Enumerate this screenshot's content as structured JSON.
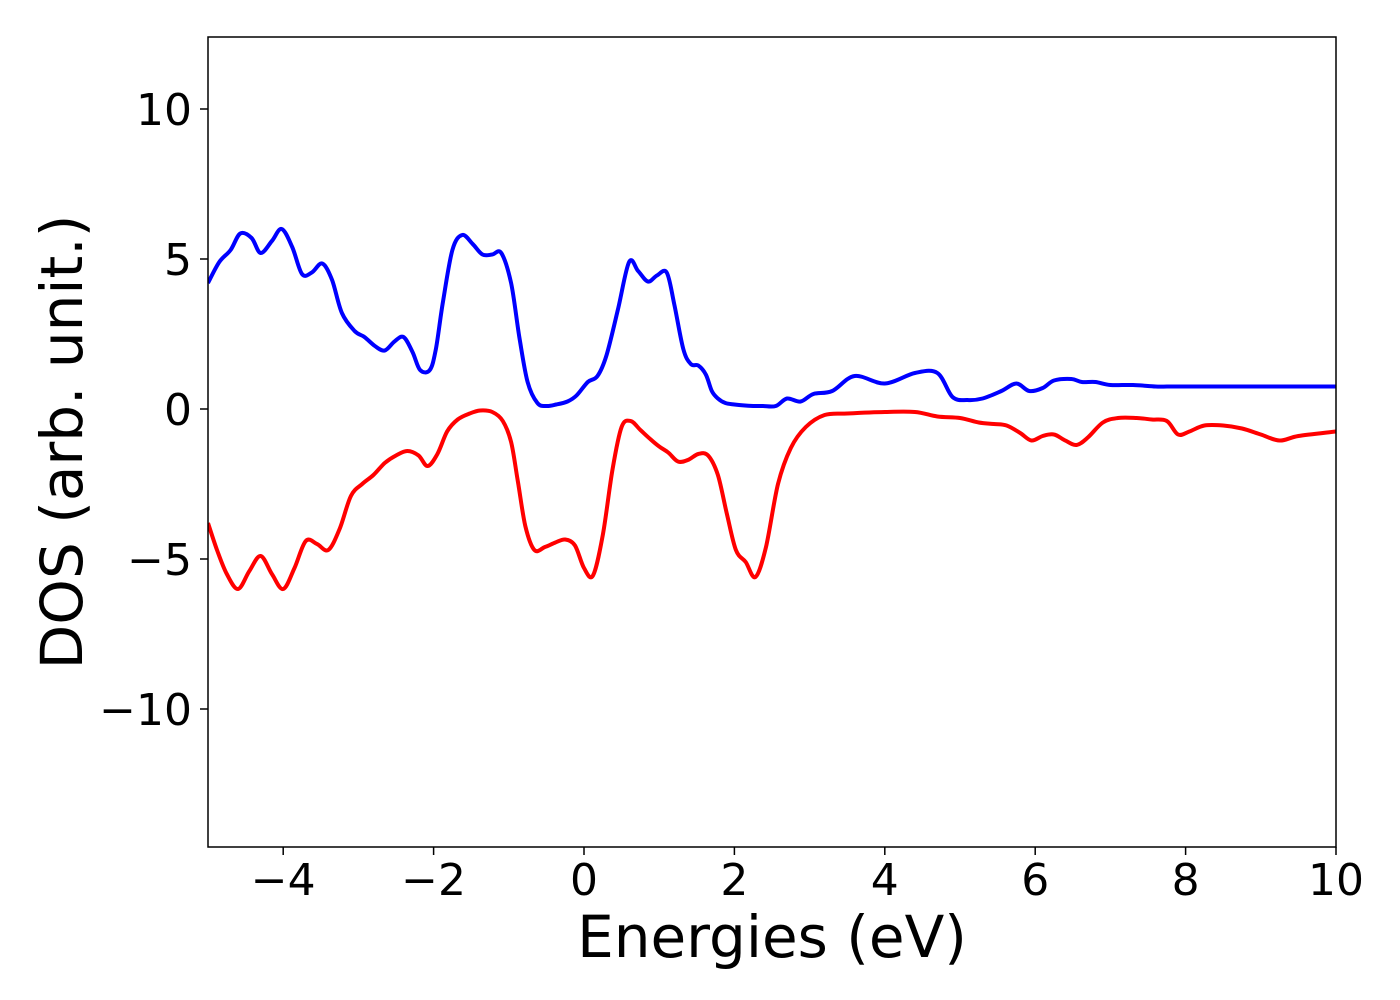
{
  "chart_data": {
    "type": "line",
    "title": "",
    "xlabel": "Energies (eV)",
    "ylabel": "DOS (arb. unit.)",
    "xlim": [
      -5,
      10
    ],
    "ylim": [
      -14.6,
      12.4
    ],
    "grid": false,
    "legend": "none",
    "xticks": [
      {
        "value": -4,
        "label": "−4"
      },
      {
        "value": -2,
        "label": "−2"
      },
      {
        "value": 0,
        "label": "0"
      },
      {
        "value": 2,
        "label": "2"
      },
      {
        "value": 4,
        "label": "4"
      },
      {
        "value": 6,
        "label": "6"
      },
      {
        "value": 8,
        "label": "8"
      },
      {
        "value": 10,
        "label": "10"
      }
    ],
    "yticks": [
      {
        "value": 10,
        "label": "10"
      },
      {
        "value": 5,
        "label": "5"
      },
      {
        "value": 0,
        "label": "0"
      },
      {
        "value": -5,
        "label": "−5"
      },
      {
        "value": -10,
        "label": "−10"
      }
    ],
    "series": [
      {
        "color": "#0000ff",
        "x": [
          -5.0,
          -4.85,
          -4.7,
          -4.57,
          -4.42,
          -4.3,
          -4.15,
          -4.02,
          -3.88,
          -3.75,
          -3.62,
          -3.48,
          -3.35,
          -3.22,
          -3.05,
          -2.92,
          -2.78,
          -2.65,
          -2.52,
          -2.4,
          -2.28,
          -2.18,
          -2.05,
          -1.97,
          -1.88,
          -1.75,
          -1.62,
          -1.48,
          -1.35,
          -1.22,
          -1.1,
          -0.97,
          -0.86,
          -0.75,
          -0.62,
          -0.5,
          -0.37,
          -0.22,
          -0.1,
          0.05,
          0.18,
          0.3,
          0.45,
          0.6,
          0.72,
          0.85,
          0.97,
          1.1,
          1.2,
          1.32,
          1.42,
          1.52,
          1.62,
          1.7,
          1.78,
          1.88,
          2.0,
          2.12,
          2.25,
          2.38,
          2.55,
          2.7,
          2.88,
          3.05,
          3.3,
          3.6,
          4.0,
          4.4,
          4.7,
          4.9,
          5.1,
          5.3,
          5.55,
          5.75,
          5.92,
          6.1,
          6.25,
          6.48,
          6.62,
          6.8,
          7.0,
          7.3,
          7.6,
          7.75,
          7.88,
          8.05,
          8.2,
          8.5,
          8.8,
          9.15,
          9.45,
          9.7,
          10.0
        ],
        "y": [
          4.2,
          4.9,
          5.3,
          5.85,
          5.7,
          5.2,
          5.6,
          6.0,
          5.4,
          4.5,
          4.55,
          4.85,
          4.3,
          3.2,
          2.6,
          2.4,
          2.1,
          1.95,
          2.25,
          2.4,
          1.9,
          1.3,
          1.3,
          2.0,
          3.5,
          5.3,
          5.8,
          5.5,
          5.15,
          5.15,
          5.2,
          4.2,
          2.4,
          0.9,
          0.2,
          0.1,
          0.15,
          0.25,
          0.45,
          0.9,
          1.1,
          1.8,
          3.3,
          4.9,
          4.6,
          4.25,
          4.45,
          4.55,
          3.5,
          2.0,
          1.5,
          1.45,
          1.15,
          0.6,
          0.35,
          0.2,
          0.15,
          0.12,
          0.1,
          0.1,
          0.1,
          0.35,
          0.25,
          0.5,
          0.6,
          1.1,
          0.85,
          1.2,
          1.2,
          0.4,
          0.3,
          0.35,
          0.6,
          0.85,
          0.6,
          0.7,
          0.95,
          1.0,
          0.9,
          0.9,
          0.8,
          0.8,
          0.75,
          0.75,
          0.75,
          0.75,
          0.75,
          0.75,
          0.75,
          0.75,
          0.75,
          0.75,
          0.75
        ]
      },
      {
        "color": "#ff0000",
        "x": [
          -5.0,
          -4.88,
          -4.75,
          -4.6,
          -4.45,
          -4.3,
          -4.15,
          -4.0,
          -3.85,
          -3.7,
          -3.55,
          -3.4,
          -3.25,
          -3.1,
          -2.95,
          -2.8,
          -2.65,
          -2.5,
          -2.35,
          -2.2,
          -2.08,
          -1.95,
          -1.82,
          -1.68,
          -1.52,
          -1.38,
          -1.22,
          -1.08,
          -0.97,
          -0.88,
          -0.78,
          -0.66,
          -0.52,
          -0.38,
          -0.25,
          -0.12,
          0.0,
          0.12,
          0.25,
          0.38,
          0.5,
          0.62,
          0.75,
          0.88,
          1.0,
          1.12,
          1.25,
          1.38,
          1.52,
          1.65,
          1.78,
          1.9,
          2.02,
          2.15,
          2.28,
          2.42,
          2.58,
          2.75,
          2.95,
          3.2,
          3.5,
          4.0,
          4.4,
          4.7,
          5.0,
          5.25,
          5.45,
          5.62,
          5.8,
          5.95,
          6.1,
          6.25,
          6.4,
          6.55,
          6.7,
          6.9,
          7.1,
          7.35,
          7.55,
          7.75,
          7.9,
          8.05,
          8.25,
          8.5,
          8.75,
          9.0,
          9.25,
          9.5,
          10.0
        ],
        "y": [
          -3.8,
          -4.7,
          -5.5,
          -6.0,
          -5.4,
          -4.9,
          -5.5,
          -6.0,
          -5.3,
          -4.4,
          -4.5,
          -4.7,
          -4.0,
          -2.9,
          -2.5,
          -2.2,
          -1.8,
          -1.55,
          -1.4,
          -1.55,
          -1.9,
          -1.5,
          -0.75,
          -0.35,
          -0.15,
          -0.05,
          -0.1,
          -0.4,
          -1.1,
          -2.4,
          -3.9,
          -4.7,
          -4.6,
          -4.45,
          -4.35,
          -4.55,
          -5.3,
          -5.55,
          -4.2,
          -2.0,
          -0.6,
          -0.4,
          -0.7,
          -1.0,
          -1.25,
          -1.45,
          -1.75,
          -1.7,
          -1.5,
          -1.55,
          -2.2,
          -3.5,
          -4.7,
          -5.1,
          -5.6,
          -4.6,
          -2.5,
          -1.3,
          -0.6,
          -0.2,
          -0.15,
          -0.1,
          -0.1,
          -0.25,
          -0.3,
          -0.45,
          -0.5,
          -0.55,
          -0.8,
          -1.05,
          -0.9,
          -0.85,
          -1.05,
          -1.2,
          -0.95,
          -0.45,
          -0.3,
          -0.3,
          -0.35,
          -0.4,
          -0.85,
          -0.75,
          -0.55,
          -0.55,
          -0.65,
          -0.85,
          -1.05,
          -0.9,
          -0.75
        ]
      }
    ]
  }
}
